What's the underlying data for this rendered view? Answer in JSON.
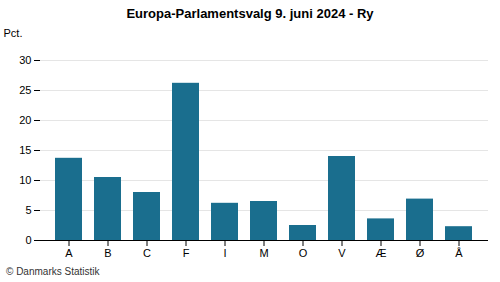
{
  "chart_data": {
    "type": "bar",
    "title": "Europa-Parlamentsvalg 9. juni 2024 - Ry",
    "categories": [
      "A",
      "B",
      "C",
      "F",
      "I",
      "M",
      "O",
      "V",
      "Æ",
      "Ø",
      "Å"
    ],
    "values": [
      13.7,
      10.5,
      8.0,
      26.2,
      6.2,
      6.5,
      2.5,
      14.0,
      3.6,
      6.9,
      2.3
    ],
    "color": "#1a6e8e",
    "ylabel": "Pct.",
    "ylim": [
      0,
      32
    ],
    "yticks": [
      0,
      5,
      10,
      15,
      20,
      25,
      30
    ],
    "grid": true,
    "footer": "© Danmarks Statistik"
  }
}
